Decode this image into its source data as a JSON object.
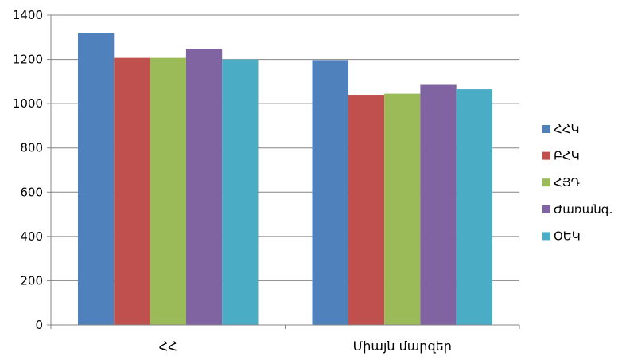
{
  "chart_data": {
    "type": "bar",
    "categories": [
      "ՀՀ",
      "Միայն մարզեր"
    ],
    "series": [
      {
        "name": "ՀՀԿ",
        "values": [
          1320,
          1197
        ],
        "color": "#4F81BD"
      },
      {
        "name": "ԲՀԿ",
        "values": [
          1207,
          1040
        ],
        "color": "#C0504D"
      },
      {
        "name": "ՀՅԴ",
        "values": [
          1207,
          1045
        ],
        "color": "#9BBB59"
      },
      {
        "name": "Ժառանգ.",
        "values": [
          1248,
          1085
        ],
        "color": "#8064A2"
      },
      {
        "name": "ՕԵԿ",
        "values": [
          1200,
          1065
        ],
        "color": "#4BACC6"
      }
    ],
    "ylim": [
      0,
      1400
    ],
    "yticks": [
      0,
      200,
      400,
      600,
      800,
      1000,
      1200,
      1400
    ],
    "grid": true,
    "legend": "right",
    "gridline_color": "#868686",
    "axis_color": "#868686"
  }
}
